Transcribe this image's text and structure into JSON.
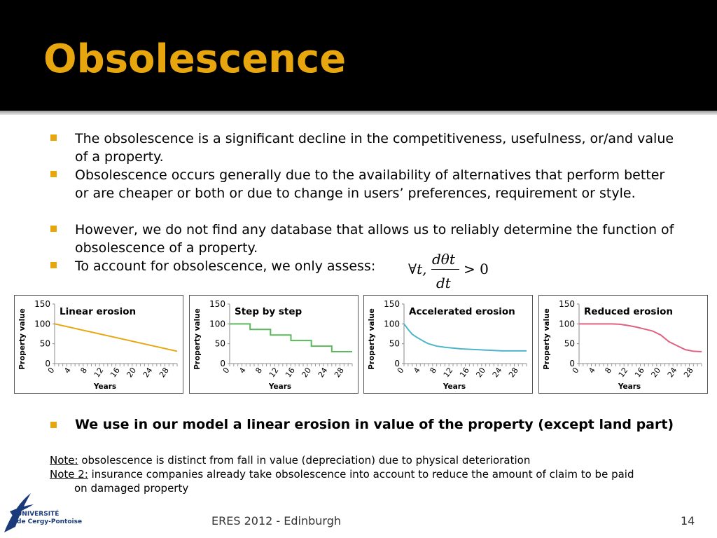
{
  "title": "Obsolescence",
  "bullets": [
    "The obsolescence is a significant decline in the competitiveness, usefulness, or/and value of a property.",
    "Obsolescence occurs generally due to the availability of alternatives that perform better or are cheaper or both or due to change in users’ preferences, requirement or style.",
    "However, we do not find any database that allows us to reliably determine the function of obsolescence of a property.",
    "To account for obsolescence, we only assess:"
  ],
  "formula": {
    "prefix": "∀t,",
    "numerator": "dθt",
    "denominator": "dt",
    "relation": "> 0"
  },
  "bold_bullet": "We use in our model a linear erosion in value of the property (except land part)",
  "notes": {
    "note1_label": "Note:",
    "note1_text": " obsolescence is distinct from fall in value (depreciation) due to physical deterioration",
    "note2_label": "Note 2:",
    "note2_text": " insurance companies already take obsolescence into account to reduce the amount of claim to be paid",
    "note2_cont": "on damaged property"
  },
  "footer": {
    "center": "ERES 2012 - Edinburgh",
    "page": "14"
  },
  "logo": {
    "line1": "UNIVERSITÉ",
    "line2": "de Cergy-Pontoise"
  },
  "colors": {
    "accent": "#e8a60e",
    "header_bg": "#000000"
  },
  "chart_data": [
    {
      "type": "line",
      "title": "Linear erosion",
      "xlabel": "Years",
      "ylabel": "Property value",
      "ylim": [
        0,
        150
      ],
      "yticks": [
        0,
        50,
        100,
        150
      ],
      "xticks": [
        0,
        4,
        8,
        12,
        16,
        20,
        24,
        28
      ],
      "color": "#e8a60e",
      "x": [
        0,
        30
      ],
      "y": [
        100,
        31
      ]
    },
    {
      "type": "line",
      "title": "Step by step",
      "xlabel": "Years",
      "ylabel": "Property value",
      "ylim": [
        0,
        150
      ],
      "yticks": [
        0,
        50,
        100,
        150
      ],
      "xticks": [
        0,
        4,
        8,
        12,
        16,
        20,
        24,
        28
      ],
      "color": "#5cb85c",
      "x": [
        0,
        5,
        5,
        10,
        10,
        15,
        15,
        20,
        20,
        25,
        25,
        30
      ],
      "y": [
        100,
        100,
        86,
        86,
        72,
        72,
        58,
        58,
        44,
        44,
        30,
        30
      ]
    },
    {
      "type": "line",
      "title": "Accelerated erosion",
      "xlabel": "Years",
      "ylabel": "Property value",
      "ylim": [
        0,
        150
      ],
      "yticks": [
        0,
        50,
        100,
        150
      ],
      "xticks": [
        0,
        4,
        8,
        12,
        16,
        20,
        24,
        28
      ],
      "color": "#4fb6c9",
      "x": [
        0,
        1,
        2,
        3,
        4,
        5,
        6,
        7,
        8,
        10,
        12,
        14,
        16,
        18,
        20,
        22,
        24,
        26,
        28,
        30
      ],
      "y": [
        100,
        86,
        74,
        67,
        61,
        55,
        50,
        47,
        44,
        41,
        39,
        37,
        36,
        35,
        34,
        33,
        32,
        32,
        32,
        32
      ]
    },
    {
      "type": "line",
      "title": "Reduced erosion",
      "xlabel": "Years",
      "ylabel": "Property value",
      "ylim": [
        0,
        150
      ],
      "yticks": [
        0,
        50,
        100,
        150
      ],
      "xticks": [
        0,
        4,
        8,
        12,
        16,
        20,
        24,
        28
      ],
      "color": "#e0607e",
      "x": [
        0,
        2,
        4,
        6,
        8,
        10,
        12,
        14,
        16,
        18,
        20,
        22,
        24,
        26,
        28,
        30
      ],
      "y": [
        100,
        100,
        100,
        100,
        100,
        99,
        96,
        92,
        87,
        82,
        72,
        55,
        45,
        35,
        31,
        30
      ]
    }
  ]
}
